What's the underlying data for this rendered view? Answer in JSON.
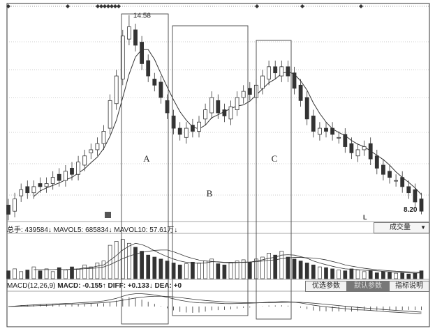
{
  "chart_data": {
    "type": "candlestick",
    "price_range": [
      8.0,
      14.8
    ],
    "annotations": {
      "high_label": "14.58",
      "low_label": "8.20",
      "low_marker": "L"
    },
    "open": [
      8.4,
      8.2,
      8.7,
      9.0,
      8.8,
      9.1,
      9.0,
      9.1,
      9.4,
      9.2,
      9.6,
      9.4,
      9.7,
      10.1,
      10.2,
      10.4,
      10.9,
      11.7,
      12.5,
      13.8,
      14.1,
      13.7,
      13.1,
      12.5,
      12.4,
      11.8,
      11.3,
      10.9,
      10.6,
      11.0,
      10.8,
      11.2,
      11.4,
      11.8,
      11.5,
      11.2,
      11.5,
      11.9,
      12.2,
      11.9,
      12.2,
      12.5,
      12.9,
      12.6,
      12.9,
      12.7,
      12.3,
      11.9,
      11.3,
      10.7,
      10.9,
      10.9,
      10.6,
      10.7,
      10.4,
      10.0,
      10.2,
      10.4,
      10.0,
      9.7,
      9.5,
      9.2,
      9.3,
      9.0,
      8.9,
      8.6
    ],
    "close": [
      8.1,
      8.6,
      8.9,
      8.8,
      9.0,
      9.0,
      9.1,
      9.3,
      9.2,
      9.5,
      9.4,
      9.8,
      10.0,
      10.2,
      10.4,
      10.8,
      11.8,
      12.6,
      13.9,
      14.2,
      13.6,
      13.0,
      12.6,
      12.3,
      11.9,
      11.4,
      10.9,
      10.7,
      10.9,
      10.8,
      11.1,
      11.5,
      11.9,
      11.4,
      11.3,
      11.6,
      11.9,
      12.1,
      12.0,
      12.3,
      12.6,
      12.9,
      12.7,
      12.9,
      12.6,
      12.2,
      11.8,
      11.2,
      10.8,
      10.9,
      10.8,
      10.7,
      10.6,
      10.3,
      10.1,
      10.2,
      10.3,
      9.9,
      9.6,
      9.4,
      9.3,
      9.2,
      9.0,
      8.8,
      8.5,
      8.2
    ],
    "volume": [
      20,
      25,
      18,
      22,
      30,
      20,
      25,
      18,
      28,
      22,
      30,
      25,
      35,
      30,
      40,
      45,
      85,
      95,
      100,
      90,
      80,
      70,
      60,
      55,
      50,
      45,
      40,
      35,
      38,
      42,
      40,
      45,
      50,
      38,
      35,
      40,
      45,
      48,
      42,
      50,
      55,
      65,
      60,
      70,
      55,
      50,
      45,
      40,
      35,
      30,
      28,
      25,
      22,
      20,
      25,
      22,
      18,
      20,
      15,
      18,
      16,
      14,
      15,
      12,
      14,
      20
    ],
    "volume_range": [
      0,
      110
    ],
    "zones": [
      "A",
      "B",
      "C"
    ]
  },
  "volume_header": {
    "total": "总手: 439584↓",
    "mavol5": "MAVOL5: 685834↓",
    "mavol10": "MAVOL10: 57.61万↓",
    "selector": "成交量",
    "selector_arrow": "▼"
  },
  "macd_header": {
    "name": "MACD(12,26,9)",
    "macd": "MACD: -0.155↑",
    "diff": "DIFF: +0.133↓",
    "dea": "DEA: +0"
  },
  "buttons": {
    "optimize": "优选参数",
    "default": "默认参数",
    "help": "指标说明"
  },
  "colors": {
    "up": "#ffffff",
    "down": "#333333",
    "line": "#333333",
    "grid": "#999999"
  }
}
